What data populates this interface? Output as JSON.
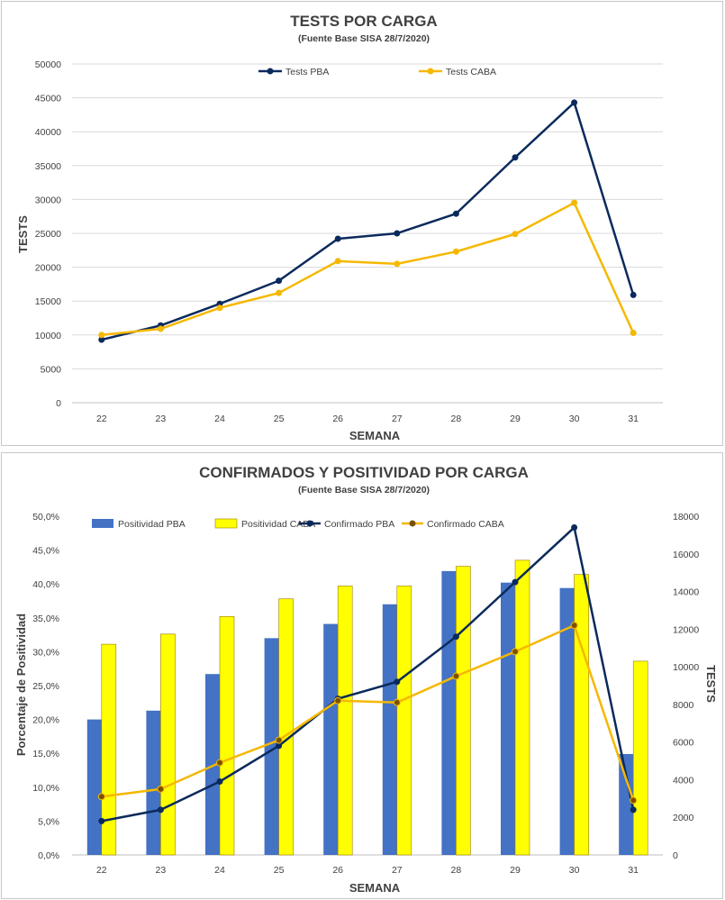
{
  "chart_data": [
    {
      "type": "line",
      "title": "TESTS POR CARGA",
      "subtitle": "(Fuente Base SISA 28/7/2020)",
      "xlabel": "SEMANA",
      "ylabel": "TESTS",
      "categories": [
        "22",
        "23",
        "24",
        "25",
        "26",
        "27",
        "28",
        "29",
        "30",
        "31"
      ],
      "ylim": [
        0,
        50000
      ],
      "yticks": [
        "0",
        "5000",
        "10000",
        "15000",
        "20000",
        "25000",
        "30000",
        "35000",
        "40000",
        "45000",
        "50000"
      ],
      "grid": true,
      "legend_position": "top",
      "series": [
        {
          "name": "Tests PBA",
          "color": "#0b2a5c",
          "values": [
            9300,
            11400,
            14600,
            18000,
            24200,
            25000,
            27900,
            36200,
            44300,
            15900
          ]
        },
        {
          "name": "Tests CABA",
          "color": "#f5b800",
          "values": [
            10000,
            10900,
            14000,
            16200,
            20900,
            20500,
            22300,
            24900,
            29500,
            10300
          ]
        }
      ]
    },
    {
      "type": "bar",
      "title": "CONFIRMADOS Y POSITIVIDAD POR CARGA",
      "subtitle": "(Fuente Base SISA 28/7/2020)",
      "xlabel": "SEMANA",
      "ylabel": "Porcentaje de Positividad",
      "y2label": "TESTS",
      "categories": [
        "22",
        "23",
        "24",
        "25",
        "26",
        "27",
        "28",
        "29",
        "30",
        "31"
      ],
      "ylim": [
        0,
        0.5
      ],
      "y2lim": [
        0,
        18000
      ],
      "yticks": [
        "0,0%",
        "5,0%",
        "10,0%",
        "15,0%",
        "20,0%",
        "25,0%",
        "30,0%",
        "35,0%",
        "40,0%",
        "45,0%",
        "50,0%"
      ],
      "y2ticks": [
        "0",
        "2000",
        "4000",
        "6000",
        "8000",
        "10000",
        "12000",
        "14000",
        "16000",
        "18000"
      ],
      "grid": false,
      "legend_position": "top",
      "bar_series": [
        {
          "name": "Positividad PBA",
          "color": "#4472c4",
          "values": [
            0.2,
            0.213,
            0.267,
            0.32,
            0.341,
            0.37,
            0.419,
            0.402,
            0.394,
            0.149
          ]
        },
        {
          "name": "Positividad CABA",
          "color": "#ffff00",
          "values": [
            0.311,
            0.326,
            0.352,
            0.378,
            0.397,
            0.397,
            0.426,
            0.435,
            0.414,
            0.286
          ]
        }
      ],
      "line_series": [
        {
          "name": "Confirmado PBA",
          "color": "#0b2a5c",
          "values": [
            1800,
            2400,
            3900,
            5800,
            8300,
            9200,
            11600,
            14500,
            17400,
            2400
          ]
        },
        {
          "name": "Confirmado CABA",
          "color": "#f5b800",
          "values": [
            3100,
            3500,
            4900,
            6100,
            8200,
            8100,
            9500,
            10800,
            12200,
            2900
          ]
        }
      ]
    }
  ]
}
